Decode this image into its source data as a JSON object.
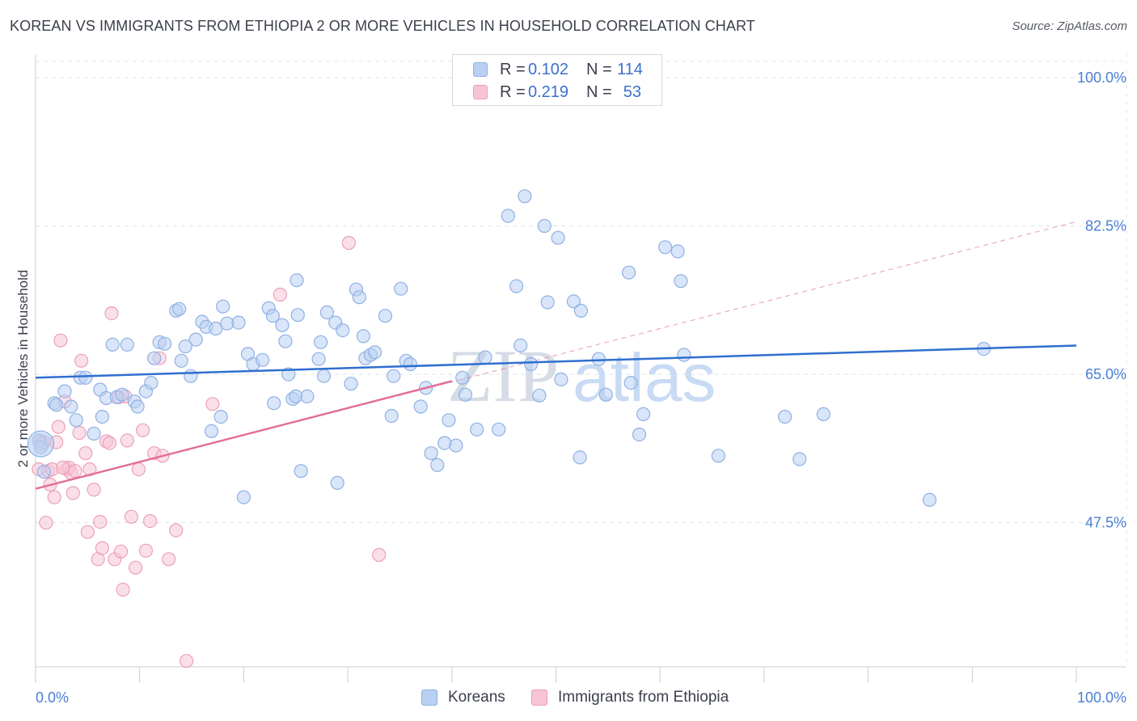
{
  "title": "KOREAN VS IMMIGRANTS FROM ETHIOPIA 2 OR MORE VEHICLES IN HOUSEHOLD CORRELATION CHART",
  "source": "Source: ZipAtlas.com",
  "watermark": {
    "zip": "ZIP",
    "atlas": "atlas"
  },
  "legend": {
    "rows": [
      {
        "r_label": "R =",
        "r_value": "0.102",
        "n_label": "N =",
        "n_value": "114"
      },
      {
        "r_label": "R =",
        "r_value": "0.219",
        "n_label": "N =",
        "n_value": "53"
      }
    ]
  },
  "bottom_legend": {
    "koreans": "Koreans",
    "ethiopia": "Immigrants from Ethiopia"
  },
  "colors": {
    "blue_fill": "#b9d0f2",
    "blue_stroke": "#8fb1e3",
    "blue_line": "#2f6fcf",
    "pink_fill": "#f7c4d5",
    "pink_stroke": "#eba0bb",
    "pink_line": "#e0709b",
    "tick": "#4a7fd4"
  },
  "chart_data": {
    "type": "scatter",
    "title": "KOREAN VS IMMIGRANTS FROM ETHIOPIA 2 OR MORE VEHICLES IN HOUSEHOLD CORRELATION CHART",
    "xlabel": "",
    "ylabel": "2 or more Vehicles in Household",
    "xlim": [
      0,
      100
    ],
    "ylim": [
      30.5,
      102
    ],
    "x_tick_labels": [
      "0.0%",
      "100.0%"
    ],
    "y_ticks": [
      47.5,
      65.0,
      82.5,
      100.0
    ],
    "y_tick_labels": [
      "47.5%",
      "65.0%",
      "82.5%",
      "100.0%"
    ],
    "grid": true,
    "legend_position": "top-center",
    "series": [
      {
        "name": "Koreans",
        "r": 0.102,
        "n": 114,
        "trend": {
          "x": [
            0,
            100
          ],
          "y": [
            64.6,
            68.4
          ]
        },
        "points": [
          [
            0.3,
            57.2
          ],
          [
            0.5,
            56.4
          ],
          [
            0.8,
            53.5
          ],
          [
            1.8,
            61.6
          ],
          [
            2.0,
            61.4
          ],
          [
            2.8,
            63.0
          ],
          [
            3.4,
            61.2
          ],
          [
            3.9,
            59.6
          ],
          [
            4.3,
            64.6
          ],
          [
            4.8,
            64.6
          ],
          [
            5.6,
            58.0
          ],
          [
            6.2,
            63.2
          ],
          [
            6.4,
            60.0
          ],
          [
            6.8,
            62.2
          ],
          [
            7.4,
            68.5
          ],
          [
            7.8,
            62.3
          ],
          [
            8.3,
            62.6
          ],
          [
            8.8,
            68.5
          ],
          [
            9.5,
            61.8
          ],
          [
            9.8,
            61.2
          ],
          [
            10.6,
            63.0
          ],
          [
            11.1,
            64.0
          ],
          [
            11.4,
            66.9
          ],
          [
            11.9,
            68.8
          ],
          [
            12.4,
            68.6
          ],
          [
            13.5,
            72.5
          ],
          [
            13.8,
            72.7
          ],
          [
            14.0,
            66.6
          ],
          [
            14.4,
            68.3
          ],
          [
            14.9,
            64.8
          ],
          [
            15.4,
            69.1
          ],
          [
            16.0,
            71.2
          ],
          [
            16.4,
            70.6
          ],
          [
            16.9,
            58.3
          ],
          [
            17.3,
            70.4
          ],
          [
            17.8,
            60.0
          ],
          [
            18.0,
            73.0
          ],
          [
            18.4,
            71.0
          ],
          [
            19.5,
            71.1
          ],
          [
            20.0,
            50.5
          ],
          [
            20.4,
            67.4
          ],
          [
            20.9,
            66.2
          ],
          [
            21.8,
            66.7
          ],
          [
            22.4,
            72.8
          ],
          [
            22.8,
            71.9
          ],
          [
            22.9,
            61.6
          ],
          [
            23.7,
            70.8
          ],
          [
            24.0,
            68.9
          ],
          [
            24.3,
            65.0
          ],
          [
            24.7,
            62.1
          ],
          [
            25.0,
            62.4
          ],
          [
            25.1,
            76.1
          ],
          [
            25.2,
            72.0
          ],
          [
            25.5,
            53.6
          ],
          [
            26.1,
            62.4
          ],
          [
            27.2,
            66.8
          ],
          [
            27.4,
            68.8
          ],
          [
            27.7,
            64.8
          ],
          [
            28.0,
            72.3
          ],
          [
            28.8,
            71.1
          ],
          [
            29.0,
            52.2
          ],
          [
            29.5,
            70.2
          ],
          [
            30.3,
            63.9
          ],
          [
            30.8,
            75.0
          ],
          [
            31.1,
            74.1
          ],
          [
            31.5,
            69.5
          ],
          [
            31.7,
            66.9
          ],
          [
            32.2,
            67.3
          ],
          [
            32.6,
            67.6
          ],
          [
            33.6,
            71.9
          ],
          [
            34.2,
            60.1
          ],
          [
            34.4,
            64.8
          ],
          [
            35.1,
            75.1
          ],
          [
            35.6,
            66.6
          ],
          [
            36.0,
            66.2
          ],
          [
            37.0,
            61.2
          ],
          [
            37.5,
            63.4
          ],
          [
            38.0,
            55.7
          ],
          [
            38.6,
            54.3
          ],
          [
            39.3,
            56.9
          ],
          [
            39.7,
            59.6
          ],
          [
            40.4,
            56.6
          ],
          [
            41.0,
            64.6
          ],
          [
            41.3,
            62.6
          ],
          [
            42.4,
            58.5
          ],
          [
            43.2,
            67.0
          ],
          [
            44.5,
            58.5
          ],
          [
            45.4,
            83.7
          ],
          [
            46.2,
            75.4
          ],
          [
            46.6,
            68.4
          ],
          [
            47.0,
            86.0
          ],
          [
            47.6,
            66.2
          ],
          [
            48.4,
            62.5
          ],
          [
            48.9,
            82.5
          ],
          [
            49.2,
            73.5
          ],
          [
            50.2,
            81.1
          ],
          [
            50.5,
            64.4
          ],
          [
            51.7,
            73.6
          ],
          [
            52.4,
            72.5
          ],
          [
            52.3,
            55.2
          ],
          [
            54.1,
            66.8
          ],
          [
            54.8,
            62.6
          ],
          [
            57.0,
            77.0
          ],
          [
            57.2,
            64.0
          ],
          [
            58.0,
            57.9
          ],
          [
            58.4,
            60.3
          ],
          [
            60.5,
            80.0
          ],
          [
            61.7,
            79.5
          ],
          [
            62.0,
            76.0
          ],
          [
            62.3,
            67.3
          ],
          [
            65.6,
            55.4
          ],
          [
            72.0,
            60.0
          ],
          [
            73.4,
            55.0
          ],
          [
            75.7,
            60.3
          ],
          [
            85.9,
            50.2
          ],
          [
            91.1,
            68.0
          ]
        ]
      },
      {
        "name": "Immigrants from Ethiopia",
        "r": 0.219,
        "n": 53,
        "trend": {
          "x": [
            0,
            40
          ],
          "y": [
            51.5,
            64.2
          ]
        },
        "extended_trend": {
          "x": [
            0,
            100
          ],
          "y": [
            51.5,
            83.0
          ]
        },
        "points": [
          [
            0.3,
            53.8
          ],
          [
            0.5,
            57.1
          ],
          [
            0.8,
            57.0
          ],
          [
            1.0,
            47.5
          ],
          [
            1.2,
            53.6
          ],
          [
            1.4,
            52.0
          ],
          [
            1.6,
            53.8
          ],
          [
            1.8,
            50.5
          ],
          [
            2.0,
            57.0
          ],
          [
            2.2,
            58.8
          ],
          [
            2.4,
            69.0
          ],
          [
            2.8,
            61.8
          ],
          [
            3.0,
            53.8
          ],
          [
            3.2,
            54.0
          ],
          [
            3.4,
            53.4
          ],
          [
            3.6,
            51.0
          ],
          [
            3.8,
            53.6
          ],
          [
            4.2,
            58.1
          ],
          [
            4.4,
            66.6
          ],
          [
            4.8,
            55.7
          ],
          [
            5.0,
            46.4
          ],
          [
            5.2,
            53.8
          ],
          [
            5.6,
            51.4
          ],
          [
            6.0,
            43.2
          ],
          [
            6.2,
            47.6
          ],
          [
            6.4,
            44.5
          ],
          [
            6.8,
            57.1
          ],
          [
            7.1,
            56.9
          ],
          [
            7.3,
            72.2
          ],
          [
            7.6,
            43.2
          ],
          [
            8.0,
            62.3
          ],
          [
            8.2,
            44.1
          ],
          [
            8.4,
            39.6
          ],
          [
            8.8,
            57.2
          ],
          [
            9.2,
            48.2
          ],
          [
            9.6,
            42.2
          ],
          [
            9.9,
            53.8
          ],
          [
            10.3,
            58.4
          ],
          [
            10.6,
            44.2
          ],
          [
            11.0,
            47.7
          ],
          [
            11.4,
            55.7
          ],
          [
            11.9,
            66.9
          ],
          [
            12.2,
            55.4
          ],
          [
            12.8,
            43.2
          ],
          [
            13.5,
            46.6
          ],
          [
            14.5,
            31.2
          ],
          [
            17.0,
            61.5
          ],
          [
            23.5,
            74.4
          ],
          [
            30.1,
            80.5
          ],
          [
            33.0,
            43.7
          ],
          [
            0.6,
            56.8
          ],
          [
            2.6,
            54.0
          ],
          [
            8.6,
            62.4
          ]
        ]
      }
    ]
  }
}
